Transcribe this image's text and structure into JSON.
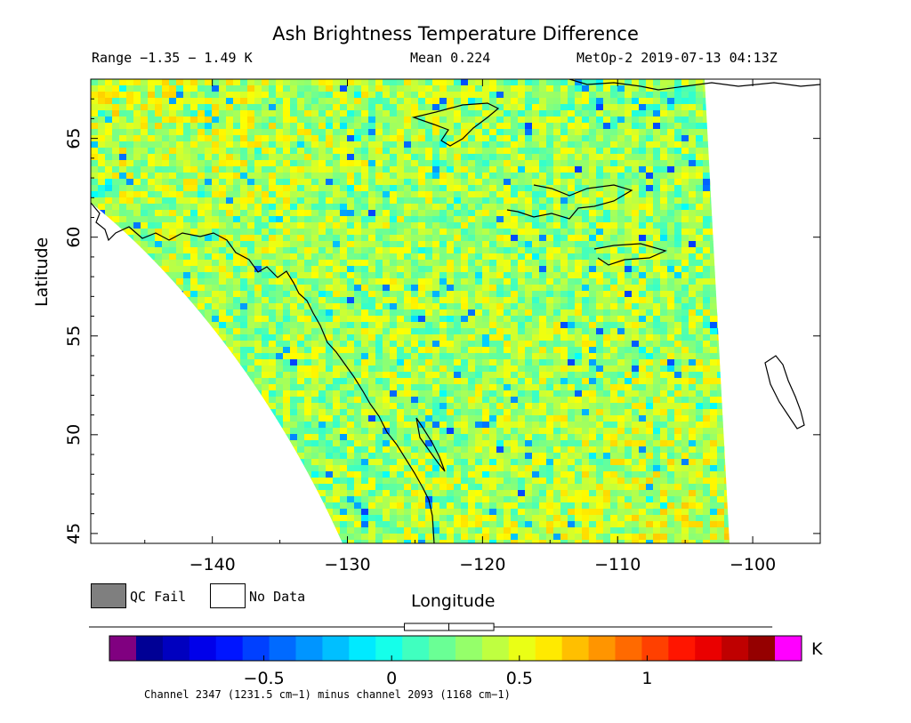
{
  "header": {
    "title": "Ash Brightness Temperature Difference",
    "range": "Range −1.35 − 1.49 K",
    "mean": "Mean 0.224",
    "satellite": "MetOp-2 2019-07-13 04:13Z"
  },
  "chart_data": {
    "type": "heatmap",
    "title": "Ash Brightness Temperature Difference",
    "xlabel": "Longitude",
    "ylabel": "Latitude",
    "xlim": [
      -149,
      -95
    ],
    "ylim": [
      44.5,
      68
    ],
    "x_ticks": [
      "−140",
      "−130",
      "−120",
      "−110",
      "−100"
    ],
    "x_tick_values": [
      -140,
      -130,
      -120,
      -110,
      -100
    ],
    "y_ticks": [
      "45",
      "50",
      "55",
      "60",
      "65"
    ],
    "y_tick_values": [
      45,
      50,
      55,
      60,
      65
    ],
    "value_range": [
      -1.35,
      1.49
    ],
    "mean": 0.224,
    "unit": "K"
  },
  "legend": {
    "qc_fail": "QC Fail",
    "no_data": "No Data",
    "qc_color": "#7f7f7f"
  },
  "colorbar": {
    "min": -1.0,
    "max": 1.5,
    "ticks": [
      "−0.5",
      "0",
      "0.5",
      "1"
    ],
    "tick_values": [
      -0.5,
      0,
      0.5,
      1
    ],
    "unit": "K",
    "underflow_color": "#800080",
    "overflow_color": "#ff00ff",
    "boxplot": {
      "min": -1.35,
      "q1": 0.05,
      "median": 0.224,
      "q3": 0.4,
      "max": 1.49
    }
  },
  "footer": {
    "channel_note": "Channel 2347 (1231.5 cm−1) minus channel 2093 (1168 cm−1)"
  }
}
